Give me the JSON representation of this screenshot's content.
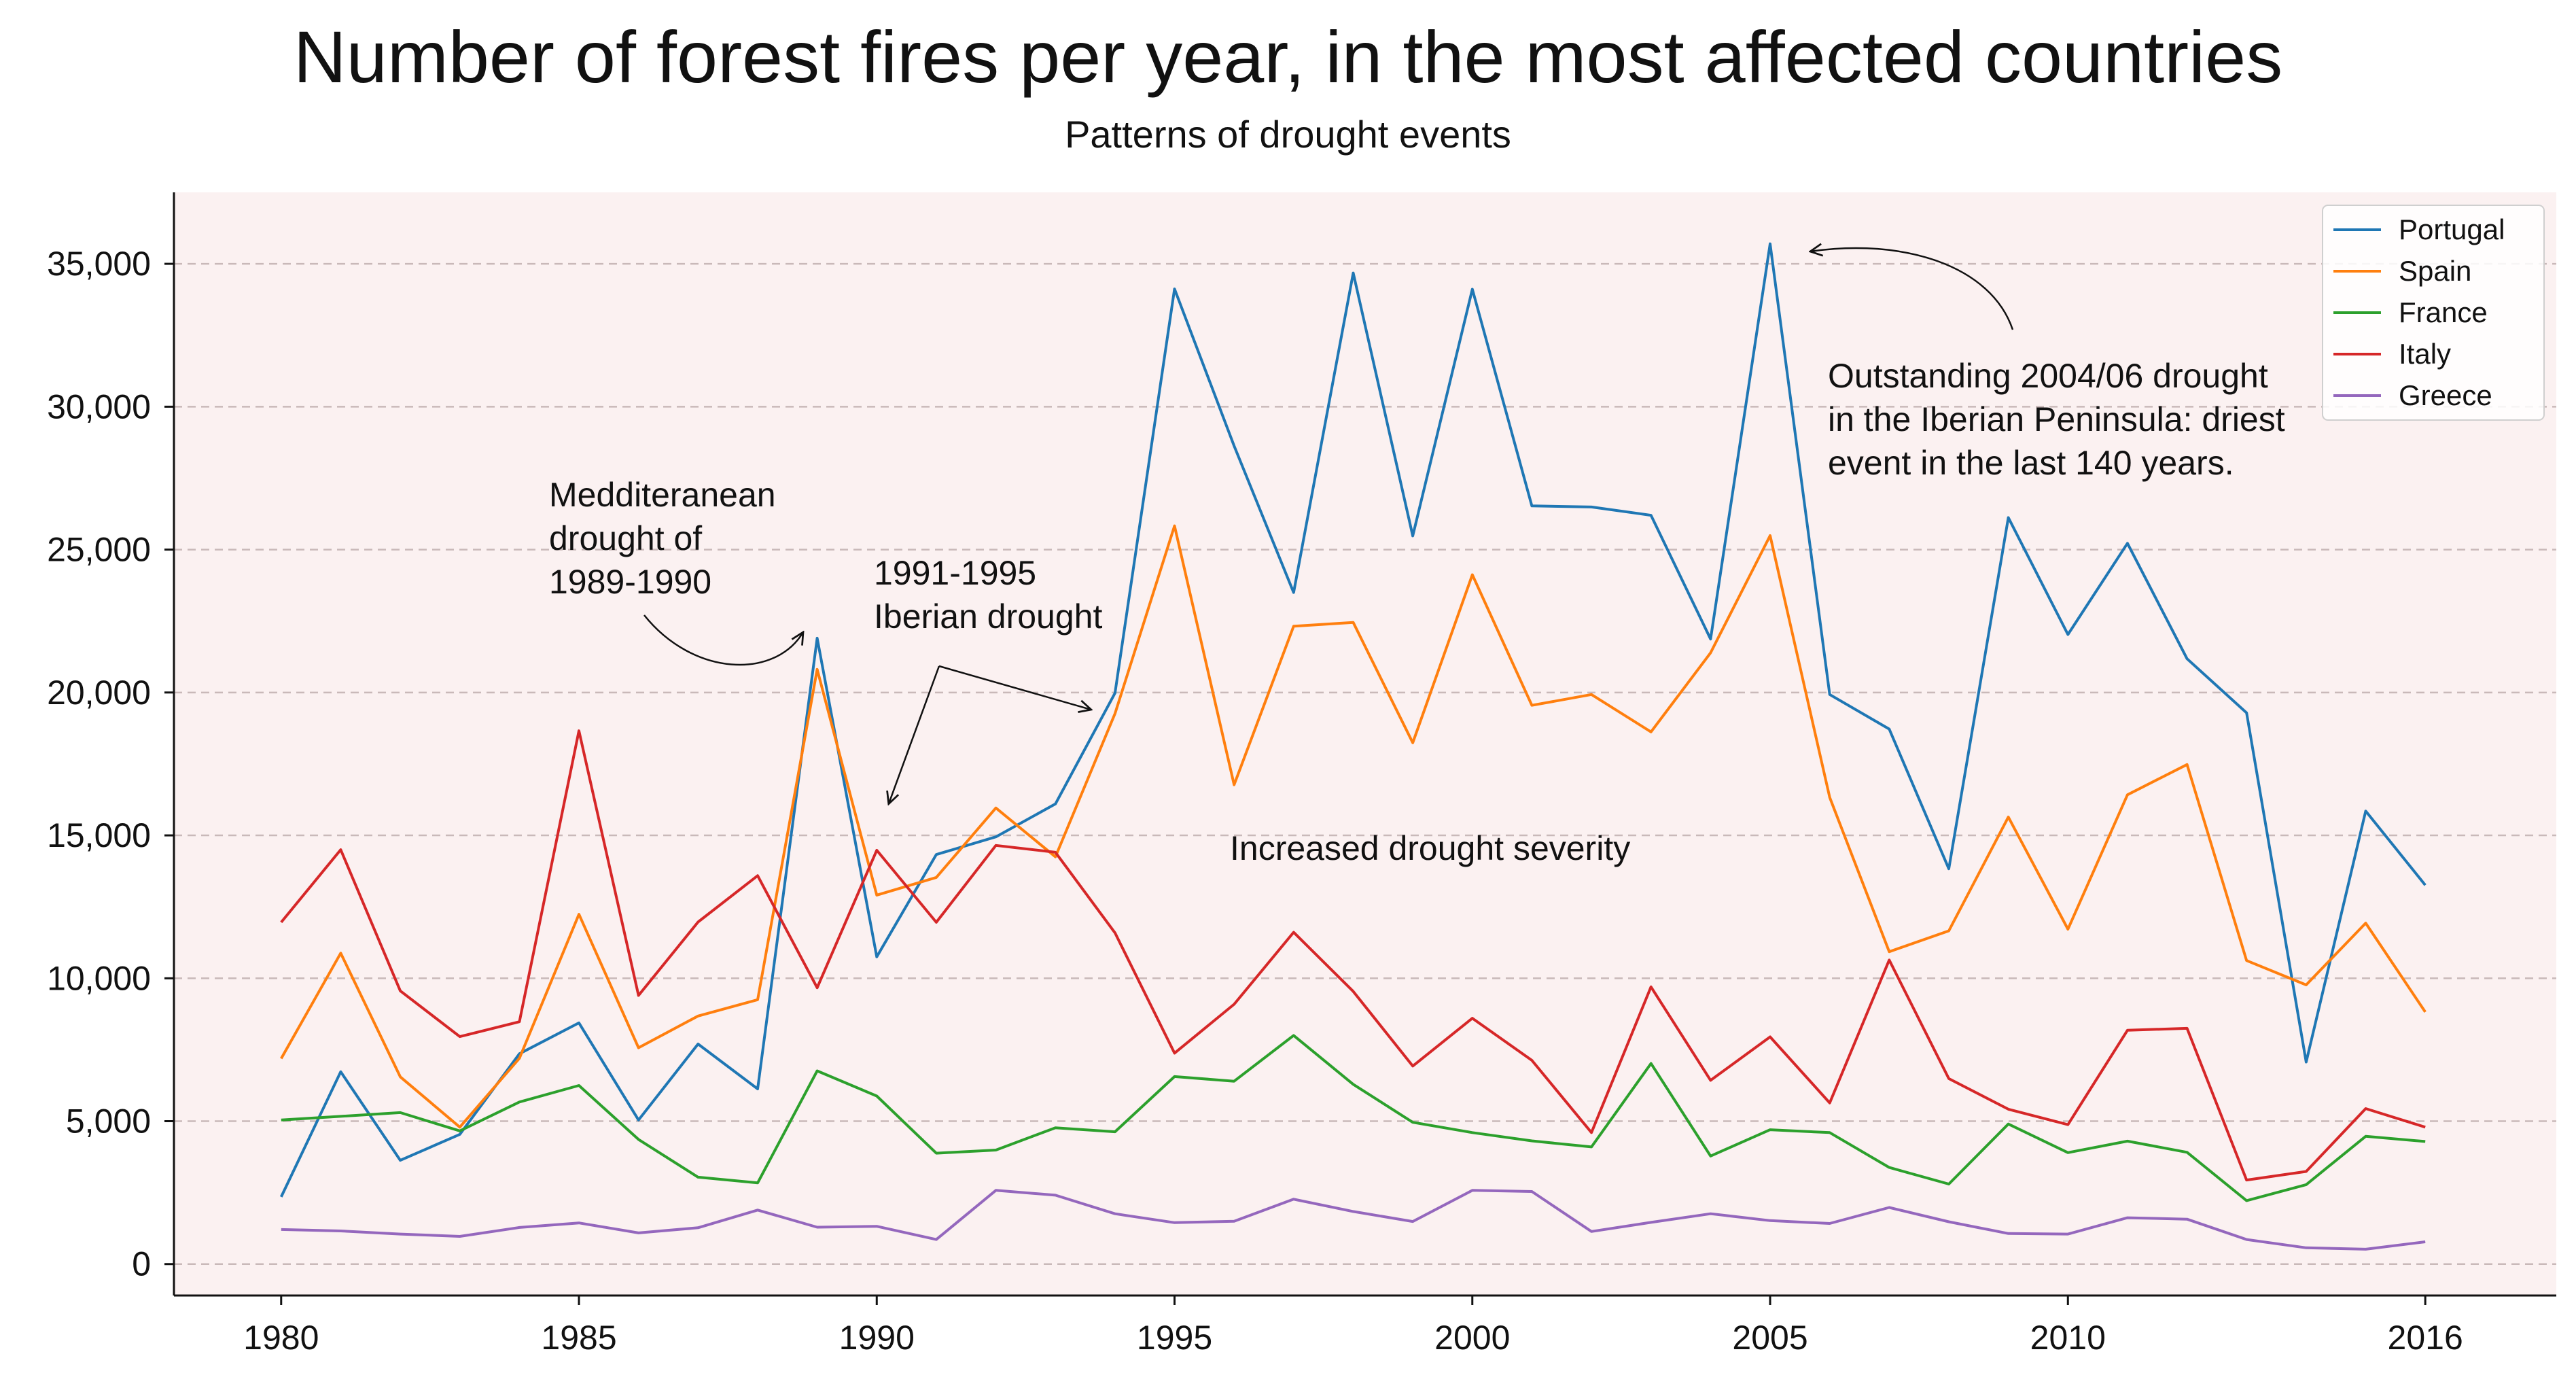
{
  "chart_data": {
    "type": "line",
    "title": "Number of forest fires per year, in the most affected countries",
    "subtitle": "Patterns of drought events",
    "xlabel": "",
    "ylabel": "",
    "xlim": [
      1978.2,
      2018.2
    ],
    "ylim": [
      -1100,
      37500
    ],
    "x_ticks": [
      "1980",
      "1985",
      "1990",
      "1995",
      "2000",
      "2005",
      "2010",
      "2016"
    ],
    "y_ticks": [
      "0",
      "5,000",
      "10,000",
      "15,000",
      "20,000",
      "25,000",
      "30,000",
      "35,000"
    ],
    "grid": "horizontal dashed",
    "legend_placement": "top-right",
    "background_color": "#fbf1f1",
    "x": [
      1980,
      1981,
      1982,
      1983,
      1984,
      1985,
      1986,
      1987,
      1988,
      1989,
      1990,
      1991,
      1992,
      1993,
      1994,
      1995,
      1996,
      1997,
      1998,
      1999,
      2000,
      2001,
      2002,
      2003,
      2004,
      2005,
      2006,
      2007,
      2008,
      2009,
      2010,
      2011,
      2012,
      2013,
      2014,
      2015,
      2016
    ],
    "series": [
      {
        "name": "Portugal",
        "color": "#1f77b4",
        "values": [
          2350,
          6730,
          3630,
          4540,
          7360,
          8440,
          5040,
          7700,
          6130,
          21900,
          10750,
          14330,
          14950,
          16100,
          19980,
          34120,
          28630,
          23500,
          34680,
          25480,
          34110,
          26530,
          26490,
          26200,
          21870,
          35700,
          19930,
          18720,
          13830,
          26120,
          22030,
          25220,
          21180,
          19290,
          7070,
          15850,
          13260
        ]
      },
      {
        "name": "Spain",
        "color": "#ff7f0e",
        "values": [
          7190,
          10880,
          6550,
          4790,
          7200,
          12240,
          7570,
          8680,
          9250,
          20810,
          12910,
          13530,
          15960,
          14250,
          19260,
          25830,
          16770,
          22320,
          22450,
          18240,
          24120,
          19550,
          19930,
          18620,
          21390,
          25490,
          16330,
          10930,
          11660,
          15640,
          11720,
          16420,
          17480,
          10620,
          9770,
          11930,
          8820
        ]
      },
      {
        "name": "France",
        "color": "#2ca02c",
        "values": [
          5040,
          5170,
          5300,
          4660,
          5670,
          6250,
          4360,
          3040,
          2840,
          6760,
          5880,
          3880,
          3990,
          4770,
          4630,
          6560,
          6400,
          8000,
          6290,
          4960,
          4600,
          4310,
          4100,
          7020,
          3780,
          4700,
          4600,
          3380,
          2800,
          4900,
          3900,
          4300,
          3910,
          2220,
          2780,
          4470,
          4290
        ]
      },
      {
        "name": "Italy",
        "color": "#d62728",
        "values": [
          11960,
          14500,
          9560,
          7960,
          8480,
          18660,
          9400,
          11970,
          13590,
          9670,
          14480,
          11960,
          14650,
          14410,
          11590,
          7380,
          9090,
          11610,
          9540,
          6930,
          8600,
          7130,
          4600,
          9700,
          6430,
          7950,
          5640,
          10640,
          6490,
          5420,
          4880,
          8180,
          8250,
          2940,
          3240,
          5440,
          4790
        ]
      },
      {
        "name": "Greece",
        "color": "#9467bd",
        "values": [
          1210,
          1160,
          1050,
          970,
          1280,
          1440,
          1090,
          1270,
          1890,
          1290,
          1320,
          860,
          2580,
          2410,
          1760,
          1450,
          1500,
          2270,
          1840,
          1490,
          2580,
          2540,
          1140,
          1460,
          1760,
          1520,
          1420,
          1980,
          1480,
          1070,
          1050,
          1620,
          1570,
          860,
          570,
          520,
          780
        ]
      }
    ],
    "annotations": [
      {
        "text": [
          "Medditeranean",
          "drought of",
          "1989-1990"
        ],
        "points_to": [
          1989,
          21600
        ]
      },
      {
        "text": [
          "1991-1995",
          "Iberian drought"
        ],
        "points_to": [
          [
            1990.2,
            16100
          ],
          [
            1993.6,
            19400
          ]
        ]
      },
      {
        "text": [
          "Increased drought severity"
        ]
      },
      {
        "text": [
          "Outstanding 2004/06 drought",
          "in the Iberian Peninsula: driest",
          "event in the last 140 years."
        ],
        "points_to": [
          2005.4,
          35600
        ]
      }
    ]
  }
}
